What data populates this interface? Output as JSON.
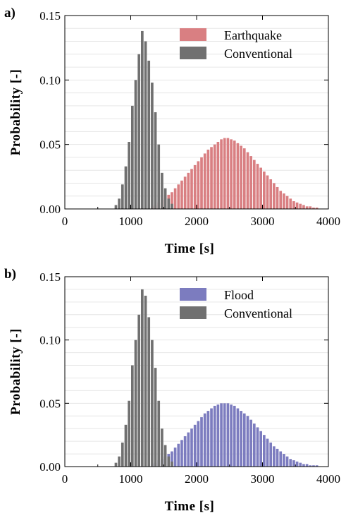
{
  "chart_data": [
    {
      "type": "bar",
      "panel_label": "a)",
      "xlabel": "Time [s]",
      "ylabel": "Probability [-]",
      "xlim": [
        0,
        4000
      ],
      "ylim": [
        0,
        0.15
      ],
      "xticks": [
        "0",
        "1000",
        "2000",
        "3000",
        "4000"
      ],
      "yticks": [
        "0.00",
        "0.05",
        "0.10",
        "0.15"
      ],
      "bin_width": 50,
      "grid": "horizontal",
      "legend_position": "top-right",
      "series": [
        {
          "name": "Earthquake",
          "color": "#d97f82",
          "start": 1300,
          "values": [
            0.002,
            0.003,
            0.005,
            0.007,
            0.009,
            0.011,
            0.013,
            0.016,
            0.019,
            0.022,
            0.025,
            0.028,
            0.031,
            0.034,
            0.037,
            0.04,
            0.043,
            0.046,
            0.048,
            0.05,
            0.052,
            0.054,
            0.055,
            0.055,
            0.054,
            0.053,
            0.051,
            0.049,
            0.047,
            0.044,
            0.041,
            0.038,
            0.035,
            0.032,
            0.029,
            0.026,
            0.023,
            0.02,
            0.017,
            0.014,
            0.012,
            0.01,
            0.008,
            0.006,
            0.005,
            0.004,
            0.003,
            0.002,
            0.002,
            0.001,
            0.001
          ]
        },
        {
          "name": "Conventional",
          "color": "#707070",
          "start": 750,
          "values": [
            0.003,
            0.008,
            0.019,
            0.033,
            0.052,
            0.08,
            0.1,
            0.12,
            0.138,
            0.13,
            0.115,
            0.098,
            0.075,
            0.05,
            0.028,
            0.016,
            0.008,
            0.004
          ]
        }
      ]
    },
    {
      "type": "bar",
      "panel_label": "b)",
      "xlabel": "Time [s]",
      "ylabel": "Probability [-]",
      "xlim": [
        0,
        4000
      ],
      "ylim": [
        0,
        0.15
      ],
      "xticks": [
        "0",
        "1000",
        "2000",
        "3000",
        "4000"
      ],
      "yticks": [
        "0.00",
        "0.05",
        "0.10",
        "0.15"
      ],
      "bin_width": 50,
      "grid": "horizontal",
      "legend_position": "top-right",
      "series": [
        {
          "name": "Flood",
          "color": "#7c7cbf",
          "start": 1300,
          "values": [
            0.002,
            0.003,
            0.005,
            0.006,
            0.008,
            0.01,
            0.012,
            0.015,
            0.018,
            0.021,
            0.024,
            0.027,
            0.03,
            0.033,
            0.036,
            0.039,
            0.042,
            0.044,
            0.046,
            0.048,
            0.049,
            0.05,
            0.05,
            0.05,
            0.049,
            0.048,
            0.046,
            0.044,
            0.042,
            0.04,
            0.037,
            0.034,
            0.031,
            0.028,
            0.025,
            0.022,
            0.019,
            0.016,
            0.014,
            0.012,
            0.01,
            0.008,
            0.006,
            0.005,
            0.004,
            0.003,
            0.002,
            0.002,
            0.001,
            0.001,
            0.001
          ]
        },
        {
          "name": "Conventional",
          "color": "#707070",
          "start": 750,
          "values": [
            0.003,
            0.008,
            0.019,
            0.033,
            0.052,
            0.08,
            0.1,
            0.12,
            0.14,
            0.135,
            0.118,
            0.1,
            0.078,
            0.052,
            0.03,
            0.017,
            0.008,
            0.004
          ]
        }
      ]
    }
  ]
}
